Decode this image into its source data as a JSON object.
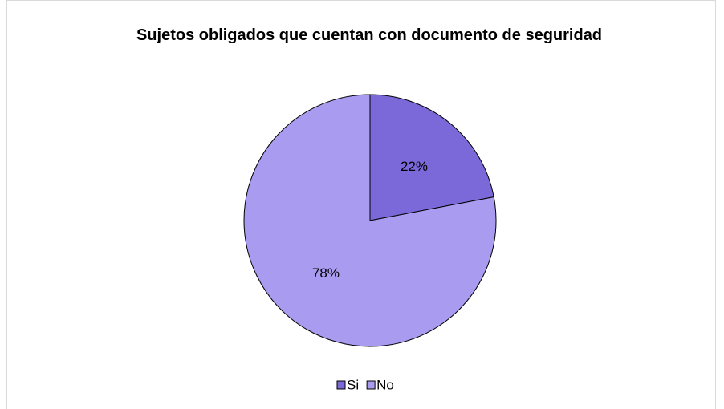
{
  "chart_data": {
    "type": "pie",
    "title": "Sujetos obligados que cuentan con documento de seguridad",
    "categories": [
      "Si",
      "No"
    ],
    "values": [
      22,
      78
    ],
    "value_labels": [
      "22%",
      "78%"
    ],
    "colors": [
      "#7b69d9",
      "#a99cf0"
    ],
    "legend": "bottom"
  }
}
